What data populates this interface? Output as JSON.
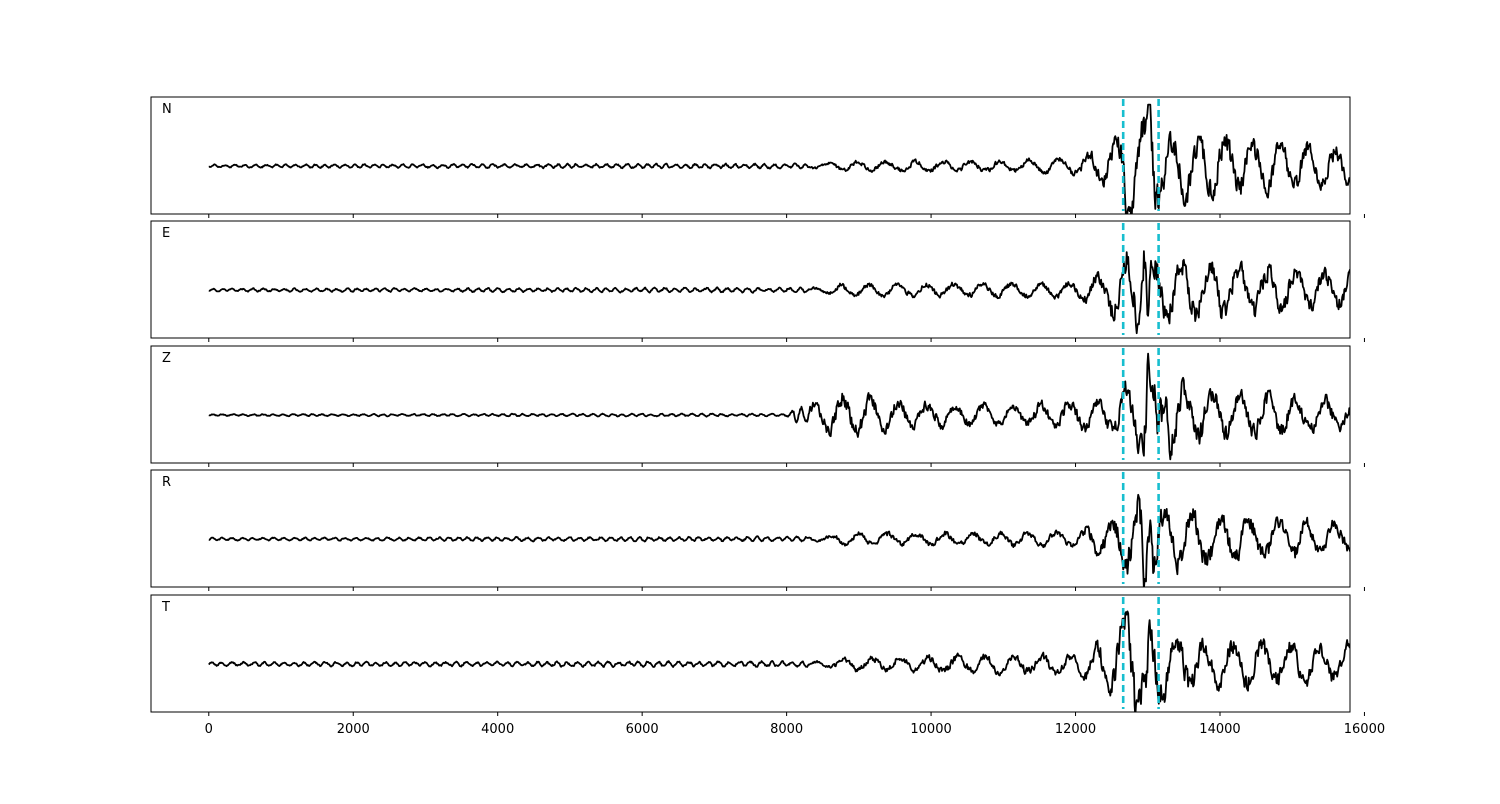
{
  "chart_data": {
    "type": "line",
    "xlim": [
      -800,
      15800
    ],
    "x_ticks": [
      0,
      2000,
      4000,
      6000,
      8000,
      10000,
      12000,
      14000,
      16000
    ],
    "x_tick_labels": [
      "0",
      "2000",
      "4000",
      "6000",
      "8000",
      "10000",
      "12000",
      "14000",
      "16000"
    ],
    "x_range": [
      0,
      15800
    ],
    "trace_color": "#000000",
    "marker_color": "#17becf",
    "vertical_markers": [
      12660,
      13150
    ],
    "series": [
      {
        "name": "N",
        "envelope": [
          [
            0,
            0.03
          ],
          [
            8500,
            0.05
          ],
          [
            8800,
            0.1
          ],
          [
            11000,
            0.12
          ],
          [
            12000,
            0.16
          ],
          [
            12500,
            0.45
          ],
          [
            12700,
            0.8
          ],
          [
            13050,
            1.0
          ],
          [
            13200,
            0.7
          ],
          [
            14000,
            0.6
          ],
          [
            15800,
            0.35
          ]
        ],
        "spikes": [
          [
            13030,
            1.0
          ],
          [
            12720,
            -0.6
          ]
        ],
        "end_offset": -0.15
      },
      {
        "name": "E",
        "envelope": [
          [
            0,
            0.03
          ],
          [
            8500,
            0.05
          ],
          [
            8700,
            0.12
          ],
          [
            12000,
            0.15
          ],
          [
            12400,
            0.4
          ],
          [
            12700,
            0.75
          ],
          [
            12900,
            0.8
          ],
          [
            13050,
            0.85
          ],
          [
            13250,
            0.6
          ],
          [
            14000,
            0.55
          ],
          [
            15800,
            0.35
          ]
        ],
        "spikes": [
          [
            12950,
            0.98
          ],
          [
            13000,
            -0.75
          ]
        ],
        "end_offset": 0.1
      },
      {
        "name": "Z",
        "envelope": [
          [
            0,
            0.02
          ],
          [
            8000,
            0.03
          ],
          [
            8300,
            0.25
          ],
          [
            8800,
            0.45
          ],
          [
            9500,
            0.3
          ],
          [
            11000,
            0.2
          ],
          [
            12000,
            0.3
          ],
          [
            12500,
            0.35
          ],
          [
            13000,
            0.9
          ],
          [
            13400,
            0.8
          ],
          [
            14000,
            0.45
          ],
          [
            15800,
            0.35
          ]
        ],
        "spikes": [
          [
            13010,
            1.0
          ],
          [
            13130,
            -0.7
          ],
          [
            13250,
            0.8
          ]
        ],
        "end_offset": 0.0
      },
      {
        "name": "R",
        "envelope": [
          [
            0,
            0.03
          ],
          [
            8500,
            0.05
          ],
          [
            8700,
            0.12
          ],
          [
            12000,
            0.15
          ],
          [
            12500,
            0.45
          ],
          [
            12800,
            0.8
          ],
          [
            13050,
            0.95
          ],
          [
            13300,
            0.6
          ],
          [
            14000,
            0.5
          ],
          [
            15800,
            0.3
          ]
        ],
        "spikes": [
          [
            13030,
            0.95
          ],
          [
            12950,
            -1.0
          ]
        ],
        "end_offset": 0.1
      },
      {
        "name": "T",
        "envelope": [
          [
            0,
            0.04
          ],
          [
            8500,
            0.06
          ],
          [
            9000,
            0.15
          ],
          [
            12000,
            0.2
          ],
          [
            12500,
            0.6
          ],
          [
            12700,
            0.9
          ],
          [
            13000,
            1.0
          ],
          [
            13300,
            0.6
          ],
          [
            14000,
            0.5
          ],
          [
            15800,
            0.35
          ]
        ],
        "spikes": [
          [
            12980,
            -1.0
          ],
          [
            12720,
            0.75
          ]
        ],
        "end_offset": 0.15
      }
    ]
  }
}
